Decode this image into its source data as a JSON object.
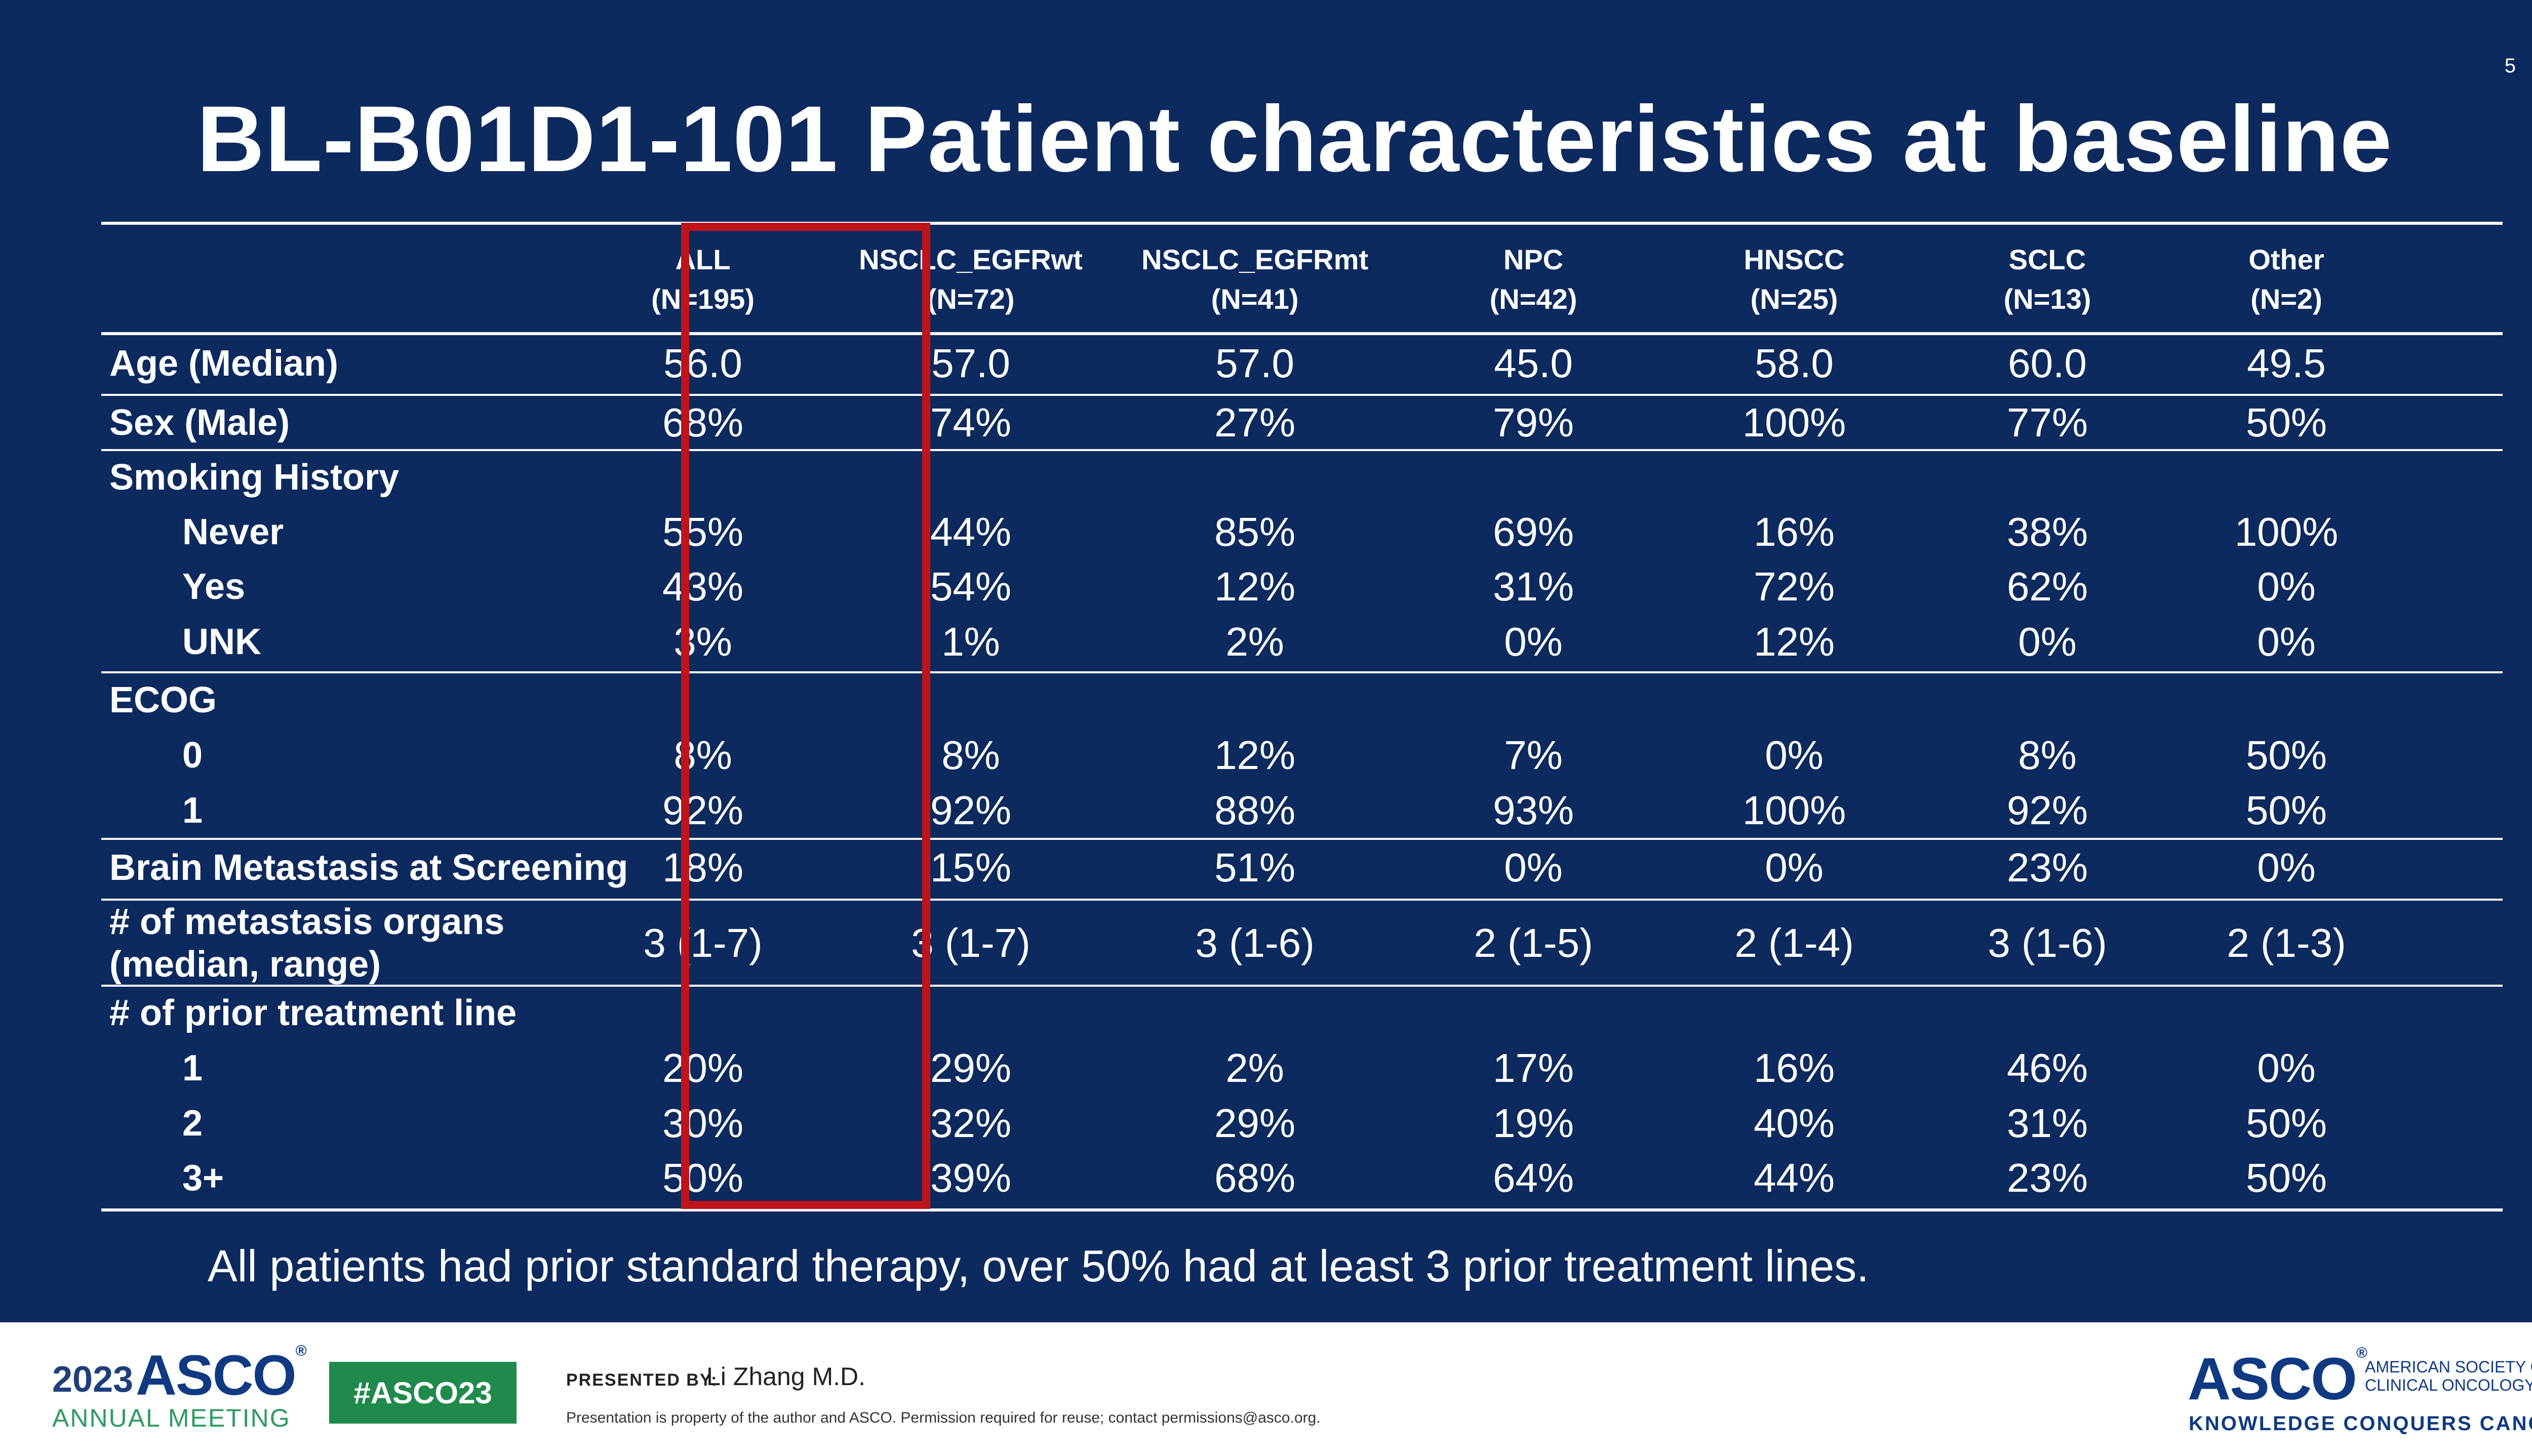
{
  "slide": {
    "page_number": "5",
    "title": "BL-B01D1-101 Patient characteristics at baseline",
    "note": "All patients had prior standard therapy, over 50% had at least 3 prior treatment lines."
  },
  "table": {
    "columns": [
      {
        "name": "ALL",
        "n": "(N=195)"
      },
      {
        "name": "NSCLC_EGFRwt",
        "n": "(N=72)"
      },
      {
        "name": "NSCLC_EGFRmt",
        "n": "(N=41)"
      },
      {
        "name": "NPC",
        "n": "(N=42)"
      },
      {
        "name": "HNSCC",
        "n": "(N=25)"
      },
      {
        "name": "SCLC",
        "n": "(N=13)"
      },
      {
        "name": "Other",
        "n": "(N=2)"
      }
    ],
    "rows": [
      {
        "label": "Age (Median)",
        "values": [
          "56.0",
          "57.0",
          "57.0",
          "45.0",
          "58.0",
          "60.0",
          "49.5"
        ]
      },
      {
        "label": "Sex (Male)",
        "values": [
          "68%",
          "74%",
          "27%",
          "79%",
          "100%",
          "77%",
          "50%"
        ]
      },
      {
        "label": "Smoking History",
        "values": []
      },
      {
        "label": "Never",
        "values": [
          "55%",
          "44%",
          "85%",
          "69%",
          "16%",
          "38%",
          "100%"
        ]
      },
      {
        "label": "Yes",
        "values": [
          "43%",
          "54%",
          "12%",
          "31%",
          "72%",
          "62%",
          "0%"
        ]
      },
      {
        "label": "UNK",
        "values": [
          "3%",
          "1%",
          "2%",
          "0%",
          "12%",
          "0%",
          "0%"
        ]
      },
      {
        "label": "ECOG",
        "values": []
      },
      {
        "label": "0",
        "values": [
          "8%",
          "8%",
          "12%",
          "7%",
          "0%",
          "8%",
          "50%"
        ]
      },
      {
        "label": "1",
        "values": [
          "92%",
          "92%",
          "88%",
          "93%",
          "100%",
          "92%",
          "50%"
        ]
      },
      {
        "label": "Brain Metastasis at Screening",
        "values": [
          "18%",
          "15%",
          "51%",
          "0%",
          "0%",
          "23%",
          "0%"
        ]
      },
      {
        "label": "# of metastasis organs",
        "label2": "(median, range)",
        "values": [
          "3 (1-7)",
          "3 (1-7)",
          "3 (1-6)",
          "2 (1-5)",
          "2 (1-4)",
          "3 (1-6)",
          "2 (1-3)"
        ]
      },
      {
        "label": "# of prior treatment line",
        "values": []
      },
      {
        "label": "1",
        "values": [
          "20%",
          "29%",
          "2%",
          "17%",
          "16%",
          "46%",
          "0%"
        ]
      },
      {
        "label": "2",
        "values": [
          "30%",
          "32%",
          "29%",
          "19%",
          "40%",
          "31%",
          "50%"
        ]
      },
      {
        "label": "3+",
        "values": [
          "50%",
          "39%",
          "68%",
          "64%",
          "44%",
          "23%",
          "50%"
        ]
      }
    ]
  },
  "footer": {
    "year": "2023",
    "asco": "ASCO",
    "annual_meeting": "ANNUAL MEETING",
    "hashtag": "#ASCO23",
    "presented_by": "PRESENTED BY:",
    "presenter": "Li Zhang M.D.",
    "property_note": "Presentation is property of the author and ASCO. Permission required for reuse; contact permissions@asco.org.",
    "right_asco": "ASCO",
    "society_line1": "AMERICAN SOCIETY OF",
    "society_line2": "CLINICAL ONCOLOGY",
    "tagline": "KNOWLEDGE CONQUERS CANCER"
  },
  "colors": {
    "background": "#0d2a5e",
    "highlight": "#c0141b",
    "footer_green": "#1f8a4c",
    "asco_blue": "#0f3a82"
  }
}
